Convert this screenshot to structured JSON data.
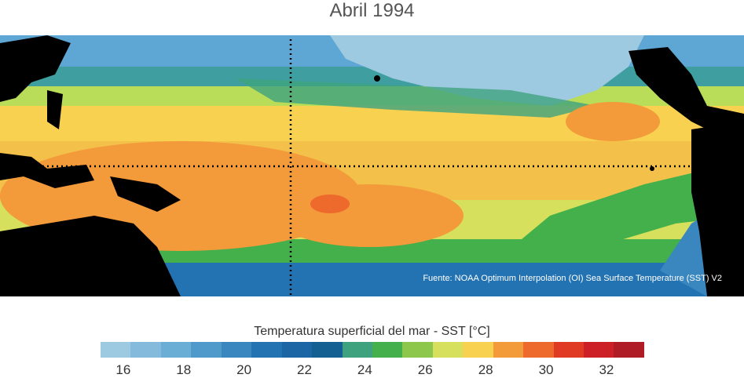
{
  "title": "Abril 1994",
  "source": "Fuente: NOAA Optimum Interpolation (OI) Sea Surface Temperature (SST) V2",
  "colorbar": {
    "label": "Temperatura superficial del mar - SST  [°C]",
    "ticks": [
      "16",
      "18",
      "20",
      "22",
      "24",
      "26",
      "28",
      "30",
      "32"
    ],
    "colors": [
      "#9ecae1",
      "#84bbdc",
      "#6aaed6",
      "#4f9acb",
      "#3a87c0",
      "#2373b2",
      "#1c66a5",
      "#146092",
      "#3ea27e",
      "#43b04b",
      "#8dc74b",
      "#d7e05c",
      "#f7d14f",
      "#f39a3a",
      "#ee6a2c",
      "#e03a25",
      "#cc1f26",
      "#b01c25"
    ]
  },
  "map": {
    "region": "Tropical Pacific Ocean",
    "equator_line": "dotted",
    "dateline_meridian": "dotted",
    "land_color": "#000000"
  }
}
